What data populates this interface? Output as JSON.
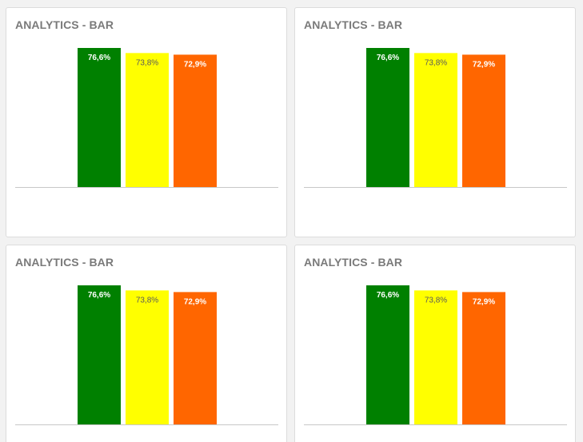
{
  "colors": {
    "green": "#008000",
    "yellow": "#ffff00",
    "orange": "#ff6600",
    "label_light": "#ffffff",
    "label_dark": "#5a5a5a",
    "baseline": "#c8c8c8"
  },
  "chart_data": [
    {
      "type": "bar",
      "title": "ANALYTICS - BAR",
      "categories": [
        "",
        "",
        ""
      ],
      "values": [
        76.6,
        73.8,
        72.9
      ],
      "labels": [
        "76,6%",
        "73,8%",
        "72,9%"
      ],
      "bar_colors": [
        "#008000",
        "#ffff00",
        "#ff6600"
      ],
      "ylim": [
        0,
        80
      ],
      "grid": false,
      "xlabel": "",
      "ylabel": ""
    },
    {
      "type": "bar",
      "title": "ANALYTICS - BAR",
      "categories": [
        "",
        "",
        ""
      ],
      "values": [
        76.6,
        73.8,
        72.9
      ],
      "labels": [
        "76,6%",
        "73,8%",
        "72,9%"
      ],
      "bar_colors": [
        "#008000",
        "#ffff00",
        "#ff6600"
      ],
      "ylim": [
        0,
        80
      ],
      "grid": false,
      "xlabel": "",
      "ylabel": ""
    },
    {
      "type": "bar",
      "title": "ANALYTICS - BAR",
      "categories": [
        "",
        "",
        ""
      ],
      "values": [
        76.6,
        73.8,
        72.9
      ],
      "labels": [
        "76,6%",
        "73,8%",
        "72,9%"
      ],
      "bar_colors": [
        "#008000",
        "#ffff00",
        "#ff6600"
      ],
      "ylim": [
        0,
        80
      ],
      "grid": false,
      "xlabel": "",
      "ylabel": ""
    },
    {
      "type": "bar",
      "title": "ANALYTICS - BAR",
      "categories": [
        "",
        "",
        ""
      ],
      "values": [
        76.6,
        73.8,
        72.9
      ],
      "labels": [
        "76,6%",
        "73,8%",
        "72,9%"
      ],
      "bar_colors": [
        "#008000",
        "#ffff00",
        "#ff6600"
      ],
      "ylim": [
        0,
        80
      ],
      "grid": false,
      "xlabel": "",
      "ylabel": ""
    }
  ]
}
